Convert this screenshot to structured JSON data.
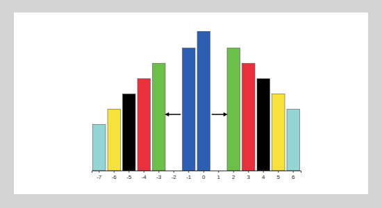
{
  "chart_data": {
    "type": "bar",
    "categories": [
      "-7",
      "-6",
      "-5",
      "-4",
      "-3",
      "-2",
      "-1",
      "0",
      "1",
      "2",
      "3",
      "4",
      "5",
      "6"
    ],
    "values": [
      33,
      44,
      55,
      66,
      77,
      null,
      88,
      100,
      null,
      88,
      77,
      66,
      55,
      44
    ],
    "colors": [
      "#93d4d4",
      "#f7e23c",
      "#000000",
      "#e8313b",
      "#6cc04a",
      null,
      "#2c5fb3",
      "#2c5fb3",
      null,
      "#6cc04a",
      "#e8313b",
      "#000000",
      "#f7e23c",
      "#93d4d4"
    ],
    "ylim": [
      0,
      100
    ],
    "tick_labels": "x"
  }
}
